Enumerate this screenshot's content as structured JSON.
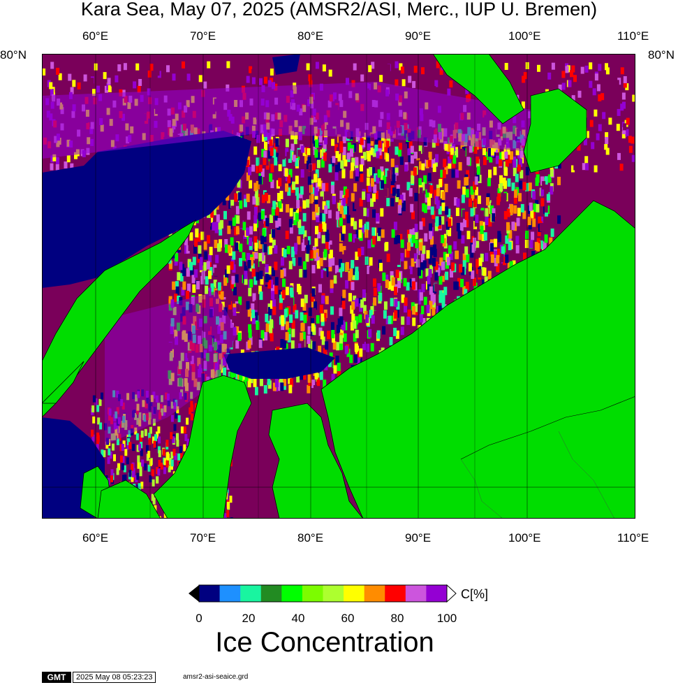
{
  "title": "Kara Sea, May 07, 2025 (AMSR2/ASI, Merc., IUP U. Bremen)",
  "lon_ticks": [
    {
      "label": "60°E",
      "lon": 60
    },
    {
      "label": "70°E",
      "lon": 70
    },
    {
      "label": "80°E",
      "lon": 80
    },
    {
      "label": "90°E",
      "lon": 90
    },
    {
      "label": "100°E",
      "lon": 100
    },
    {
      "label": "110°E",
      "lon": 110
    }
  ],
  "lat_label_left": "80°N",
  "lat_label_right": "80°N",
  "colorbar": {
    "title": "Ice Concentration",
    "unit": "C[%]",
    "tick_labels": [
      "0",
      "20",
      "40",
      "60",
      "80",
      "100"
    ],
    "colors": [
      "#000080",
      "#1e90ff",
      "#19f5a0",
      "#228b22",
      "#00ff00",
      "#7cfc00",
      "#adff2f",
      "#ffff00",
      "#ff8c00",
      "#ff0000",
      "#cc55dd",
      "#9400d3"
    ]
  },
  "colors": {
    "land": "#00dd00",
    "open_water": "#000080",
    "high_ice": "#7a005a",
    "mid_ice": "#9400d3"
  },
  "footer": {
    "logo": "GMT",
    "timestamp": "2025 May 08 05:23:23",
    "filename": "amsr2-asi-seaice.grd"
  }
}
